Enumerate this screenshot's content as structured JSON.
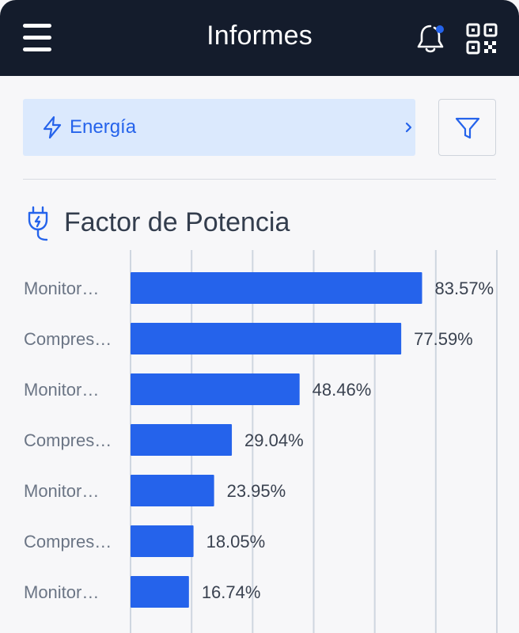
{
  "header": {
    "title": "Informes",
    "notification_dot_color": "#2563eb",
    "icons": [
      "menu-icon",
      "bell-icon",
      "qr-code-icon"
    ]
  },
  "category_selector": {
    "label": "Energía",
    "icon": "bolt-icon",
    "accent_color": "#2563eb",
    "background": "#dbe9fd"
  },
  "filter_button": {
    "icon": "filter-icon"
  },
  "section": {
    "title": "Factor de Potencia",
    "icon": "plug-icon"
  },
  "chart_data": {
    "type": "bar",
    "orientation": "horizontal",
    "categories": [
      "Monitor…",
      "Compres…",
      "Monitor…",
      "Compres…",
      "Monitor…",
      "Compres…",
      "Monitor…"
    ],
    "values": [
      83.57,
      77.59,
      48.46,
      29.04,
      23.95,
      18.05,
      16.74
    ],
    "value_labels": [
      "83.57%",
      "77.59%",
      "48.46%",
      "29.04%",
      "23.95%",
      "18.05%",
      "16.74%"
    ],
    "unit": "%",
    "xlim": [
      0,
      105
    ],
    "grid": true,
    "bar_color": "#2563eb",
    "grid_color": "#cfd6e0",
    "title": "Factor de Potencia"
  }
}
